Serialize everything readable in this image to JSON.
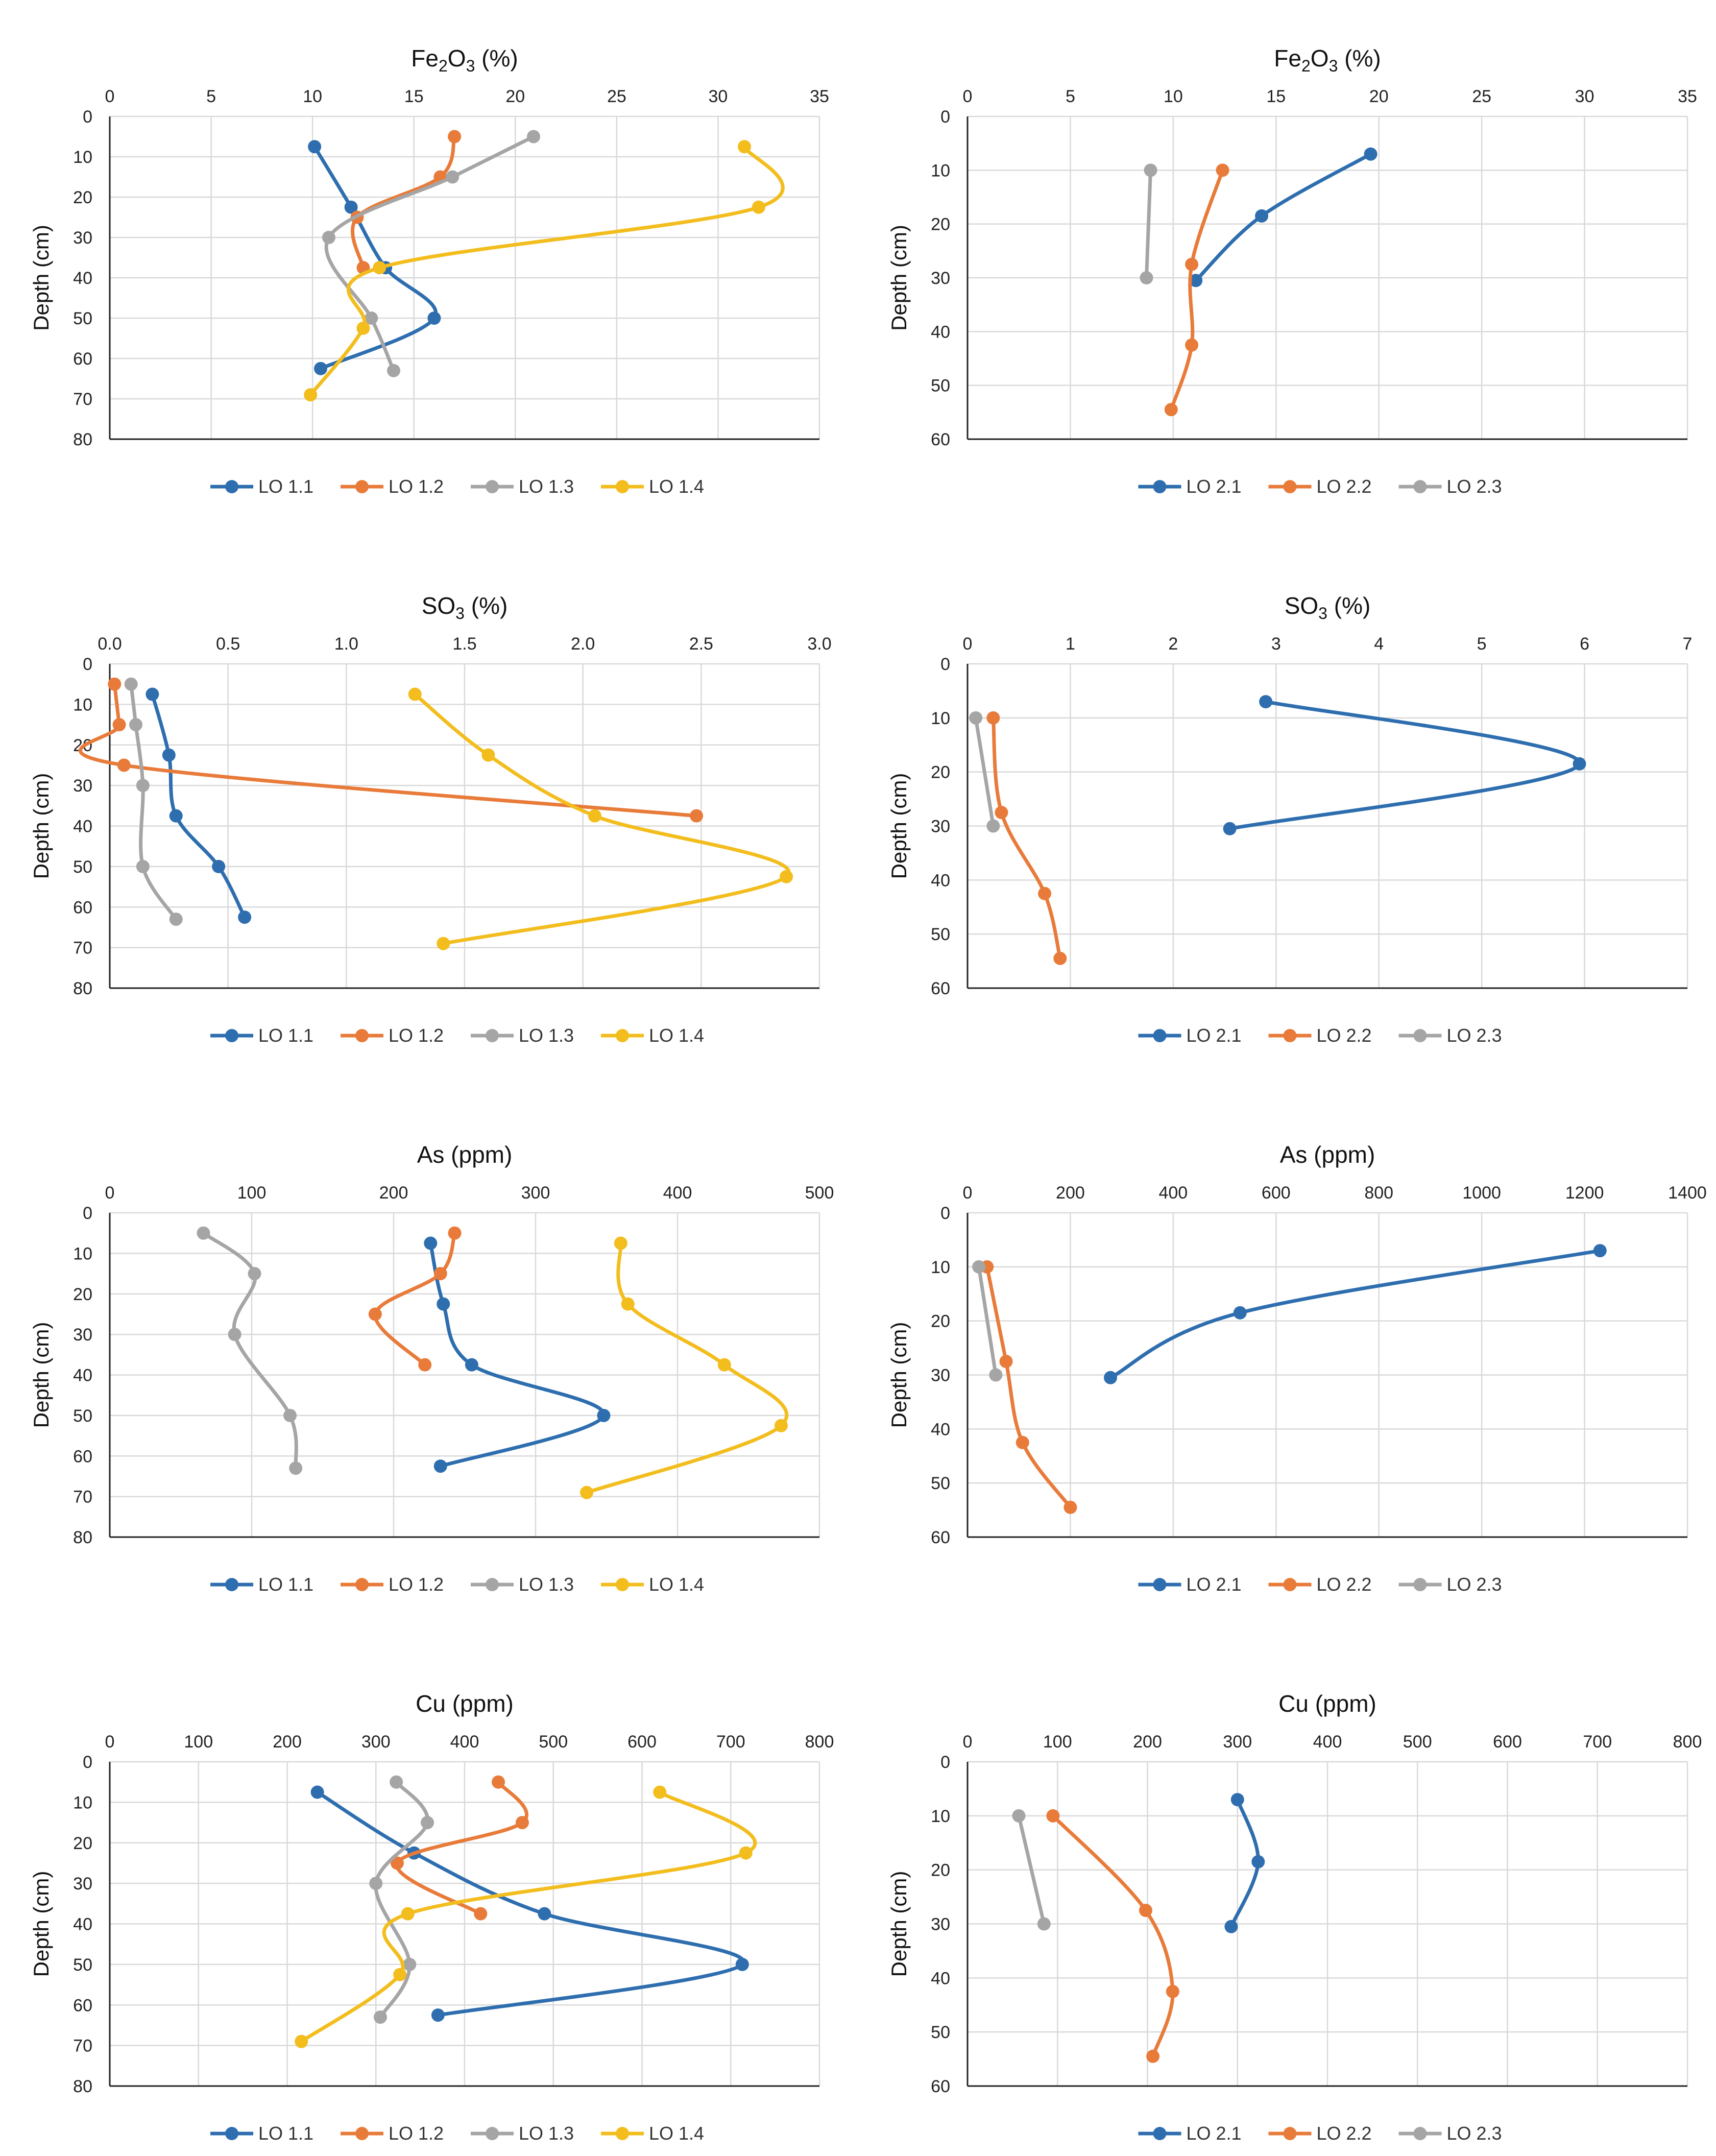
{
  "colors": {
    "LO 1.1": "#2E6EAF",
    "LO 1.2": "#E87B3A",
    "LO 1.3": "#A5A5A5",
    "LO 1.4": "#F2BD1D",
    "LO 2.1": "#2E6EAF",
    "LO 2.2": "#E87B3A",
    "LO 2.3": "#A5A5A5"
  },
  "chart_data": [
    {
      "type": "line",
      "title": {
        "main": "Fe",
        "sub1": "2",
        "mid": "O",
        "sub2": "3",
        "rest": " (%)"
      },
      "xlabel": "Fe2O3 (%)",
      "ylabel": "Depth (cm)",
      "xlim": [
        0,
        35
      ],
      "xticks": [
        0,
        5,
        10,
        15,
        20,
        25,
        30,
        35
      ],
      "ylim": [
        0,
        80
      ],
      "yticks": [
        0,
        10,
        20,
        30,
        40,
        50,
        60,
        70,
        80
      ],
      "legend": "bottom",
      "series": [
        {
          "name": "LO 1.1",
          "points": [
            [
              10.1,
              7.5
            ],
            [
              11.9,
              22.5
            ],
            [
              13.6,
              37.5
            ],
            [
              16,
              50
            ],
            [
              10.4,
              62.5
            ]
          ]
        },
        {
          "name": "LO 1.2",
          "points": [
            [
              17,
              5
            ],
            [
              16.3,
              15
            ],
            [
              12.2,
              25
            ],
            [
              12.5,
              37.5
            ]
          ]
        },
        {
          "name": "LO 1.3",
          "points": [
            [
              20.9,
              5
            ],
            [
              16.9,
              15
            ],
            [
              10.8,
              30
            ],
            [
              12.9,
              50
            ],
            [
              14,
              63
            ]
          ]
        },
        {
          "name": "LO 1.4",
          "points": [
            [
              31.3,
              7.5
            ],
            [
              32,
              22.5
            ],
            [
              13.3,
              37.5
            ],
            [
              12.5,
              52.5
            ],
            [
              9.9,
              69
            ]
          ]
        }
      ]
    },
    {
      "type": "line",
      "title": {
        "main": "Fe",
        "sub1": "2",
        "mid": "O",
        "sub2": "3",
        "rest": " (%)"
      },
      "xlabel": "Fe2O3 (%)",
      "ylabel": "Depth (cm)",
      "xlim": [
        0,
        35
      ],
      "xticks": [
        0,
        5,
        10,
        15,
        20,
        25,
        30,
        35
      ],
      "ylim": [
        0,
        60
      ],
      "yticks": [
        0,
        10,
        20,
        30,
        40,
        50,
        60
      ],
      "legend": "bottom",
      "series": [
        {
          "name": "LO 2.1",
          "points": [
            [
              19.6,
              7
            ],
            [
              14.3,
              18.5
            ],
            [
              11.1,
              30.5
            ]
          ]
        },
        {
          "name": "LO 2.2",
          "points": [
            [
              12.4,
              10
            ],
            [
              10.9,
              27.5
            ],
            [
              10.9,
              42.5
            ],
            [
              9.9,
              54.5
            ]
          ]
        },
        {
          "name": "LO 2.3",
          "points": [
            [
              8.9,
              10
            ],
            [
              8.7,
              30
            ]
          ]
        }
      ]
    },
    {
      "type": "line",
      "title": {
        "main": "SO",
        "sub1": "3",
        "mid": "",
        "sub2": "",
        "rest": " (%)"
      },
      "xlabel": "SO3 (%)",
      "ylabel": "Depth (cm)",
      "xlim": [
        0,
        3
      ],
      "xticks": [
        "0.0",
        "0.5",
        "1.0",
        "1.5",
        "2.0",
        "2.5",
        "3.0"
      ],
      "ylim": [
        0,
        80
      ],
      "yticks": [
        0,
        10,
        20,
        30,
        40,
        50,
        60,
        70,
        80
      ],
      "legend": "bottom",
      "series": [
        {
          "name": "LO 1.1",
          "points": [
            [
              0.18,
              7.5
            ],
            [
              0.25,
              22.5
            ],
            [
              0.28,
              37.5
            ],
            [
              0.46,
              50
            ],
            [
              0.57,
              62.5
            ]
          ]
        },
        {
          "name": "LO 1.2",
          "points": [
            [
              0.02,
              5
            ],
            [
              0.04,
              15
            ],
            [
              0.06,
              25
            ],
            [
              2.48,
              37.5
            ]
          ]
        },
        {
          "name": "LO 1.3",
          "points": [
            [
              0.09,
              5
            ],
            [
              0.11,
              15
            ],
            [
              0.14,
              30
            ],
            [
              0.14,
              50
            ],
            [
              0.28,
              63
            ]
          ]
        },
        {
          "name": "LO 1.4",
          "points": [
            [
              1.29,
              7.5
            ],
            [
              1.6,
              22.5
            ],
            [
              2.05,
              37.5
            ],
            [
              2.86,
              52.5
            ],
            [
              1.41,
              69
            ]
          ]
        }
      ]
    },
    {
      "type": "line",
      "title": {
        "main": "SO",
        "sub1": "3",
        "mid": "",
        "sub2": "",
        "rest": " (%)"
      },
      "xlabel": "SO3 (%)",
      "ylabel": "Depth (cm)",
      "xlim": [
        0,
        7
      ],
      "xticks": [
        0,
        1,
        2,
        3,
        4,
        5,
        6,
        7
      ],
      "ylim": [
        0,
        60
      ],
      "yticks": [
        0,
        10,
        20,
        30,
        40,
        50,
        60
      ],
      "legend": "bottom",
      "series": [
        {
          "name": "LO 2.1",
          "points": [
            [
              2.9,
              7
            ],
            [
              5.95,
              18.5
            ],
            [
              2.55,
              30.5
            ]
          ]
        },
        {
          "name": "LO 2.2",
          "points": [
            [
              0.25,
              10
            ],
            [
              0.33,
              27.5
            ],
            [
              0.75,
              42.5
            ],
            [
              0.9,
              54.5
            ]
          ]
        },
        {
          "name": "LO 2.3",
          "points": [
            [
              0.08,
              10
            ],
            [
              0.25,
              30
            ]
          ]
        }
      ]
    },
    {
      "type": "line",
      "title": {
        "main": "As (ppm)",
        "sub1": "",
        "mid": "",
        "sub2": "",
        "rest": ""
      },
      "xlabel": "As (ppm)",
      "ylabel": "Depth (cm)",
      "xlim": [
        0,
        500
      ],
      "xticks": [
        0,
        100,
        200,
        300,
        400,
        500
      ],
      "ylim": [
        0,
        80
      ],
      "yticks": [
        0,
        10,
        20,
        30,
        40,
        50,
        60,
        70,
        80
      ],
      "legend": "bottom",
      "series": [
        {
          "name": "LO 1.1",
          "points": [
            [
              226,
              7.5
            ],
            [
              235,
              22.5
            ],
            [
              255,
              37.5
            ],
            [
              348,
              50
            ],
            [
              233,
              62.5
            ]
          ]
        },
        {
          "name": "LO 1.2",
          "points": [
            [
              243,
              5
            ],
            [
              233,
              15
            ],
            [
              187,
              25
            ],
            [
              222,
              37.5
            ]
          ]
        },
        {
          "name": "LO 1.3",
          "points": [
            [
              66,
              5
            ],
            [
              102,
              15
            ],
            [
              88,
              30
            ],
            [
              127,
              50
            ],
            [
              131,
              63
            ]
          ]
        },
        {
          "name": "LO 1.4",
          "points": [
            [
              360,
              7.5
            ],
            [
              365,
              22.5
            ],
            [
              433,
              37.5
            ],
            [
              473,
              52.5
            ],
            [
              336,
              69
            ]
          ]
        }
      ]
    },
    {
      "type": "line",
      "title": {
        "main": "As (ppm)",
        "sub1": "",
        "mid": "",
        "sub2": "",
        "rest": ""
      },
      "xlabel": "As (ppm)",
      "ylabel": "Depth (cm)",
      "xlim": [
        0,
        1400
      ],
      "xticks": [
        0,
        200,
        400,
        600,
        800,
        1000,
        1200,
        1400
      ],
      "ylim": [
        0,
        60
      ],
      "yticks": [
        0,
        10,
        20,
        30,
        40,
        50,
        60
      ],
      "legend": "bottom",
      "series": [
        {
          "name": "LO 2.1",
          "points": [
            [
              1230,
              7
            ],
            [
              530,
              18.5
            ],
            [
              278,
              30.5
            ]
          ]
        },
        {
          "name": "LO 2.2",
          "points": [
            [
              38,
              10
            ],
            [
              75,
              27.5
            ],
            [
              107,
              42.5
            ],
            [
              200,
              54.5
            ]
          ]
        },
        {
          "name": "LO 2.3",
          "points": [
            [
              22,
              10
            ],
            [
              55,
              30
            ]
          ]
        }
      ]
    },
    {
      "type": "line",
      "title": {
        "main": "Cu (ppm)",
        "sub1": "",
        "mid": "",
        "sub2": "",
        "rest": ""
      },
      "xlabel": "Cu (ppm)",
      "ylabel": "Depth (cm)",
      "xlim": [
        0,
        800
      ],
      "xticks": [
        0,
        100,
        200,
        300,
        400,
        500,
        600,
        700,
        800
      ],
      "ylim": [
        0,
        80
      ],
      "yticks": [
        0,
        10,
        20,
        30,
        40,
        50,
        60,
        70,
        80
      ],
      "legend": "bottom",
      "series": [
        {
          "name": "LO 1.1",
          "points": [
            [
              234,
              7.5
            ],
            [
              343,
              22.5
            ],
            [
              490,
              37.5
            ],
            [
              713,
              50
            ],
            [
              370,
              62.5
            ]
          ]
        },
        {
          "name": "LO 1.2",
          "points": [
            [
              438,
              5
            ],
            [
              465,
              15
            ],
            [
              324,
              25
            ],
            [
              418,
              37.5
            ]
          ]
        },
        {
          "name": "LO 1.3",
          "points": [
            [
              323,
              5
            ],
            [
              358,
              15
            ],
            [
              300,
              30
            ],
            [
              338,
              50
            ],
            [
              305,
              63
            ]
          ]
        },
        {
          "name": "LO 1.4",
          "points": [
            [
              620,
              7.5
            ],
            [
              717,
              22.5
            ],
            [
              336,
              37.5
            ],
            [
              327,
              52.5
            ],
            [
              216,
              69
            ]
          ]
        }
      ]
    },
    {
      "type": "line",
      "title": {
        "main": "Cu (ppm)",
        "sub1": "",
        "mid": "",
        "sub2": "",
        "rest": ""
      },
      "xlabel": "Cu (ppm)",
      "ylabel": "Depth (cm)",
      "xlim": [
        0,
        800
      ],
      "xticks": [
        0,
        100,
        200,
        300,
        400,
        500,
        600,
        700,
        800
      ],
      "ylim": [
        0,
        60
      ],
      "yticks": [
        0,
        10,
        20,
        30,
        40,
        50,
        60
      ],
      "legend": "bottom",
      "series": [
        {
          "name": "LO 2.1",
          "points": [
            [
              300,
              7
            ],
            [
              323,
              18.5
            ],
            [
              293,
              30.5
            ]
          ]
        },
        {
          "name": "LO 2.2",
          "points": [
            [
              95,
              10
            ],
            [
              198,
              27.5
            ],
            [
              228,
              42.5
            ],
            [
              206,
              54.5
            ]
          ]
        },
        {
          "name": "LO 2.3",
          "points": [
            [
              57,
              10
            ],
            [
              85,
              30
            ]
          ]
        }
      ]
    }
  ]
}
